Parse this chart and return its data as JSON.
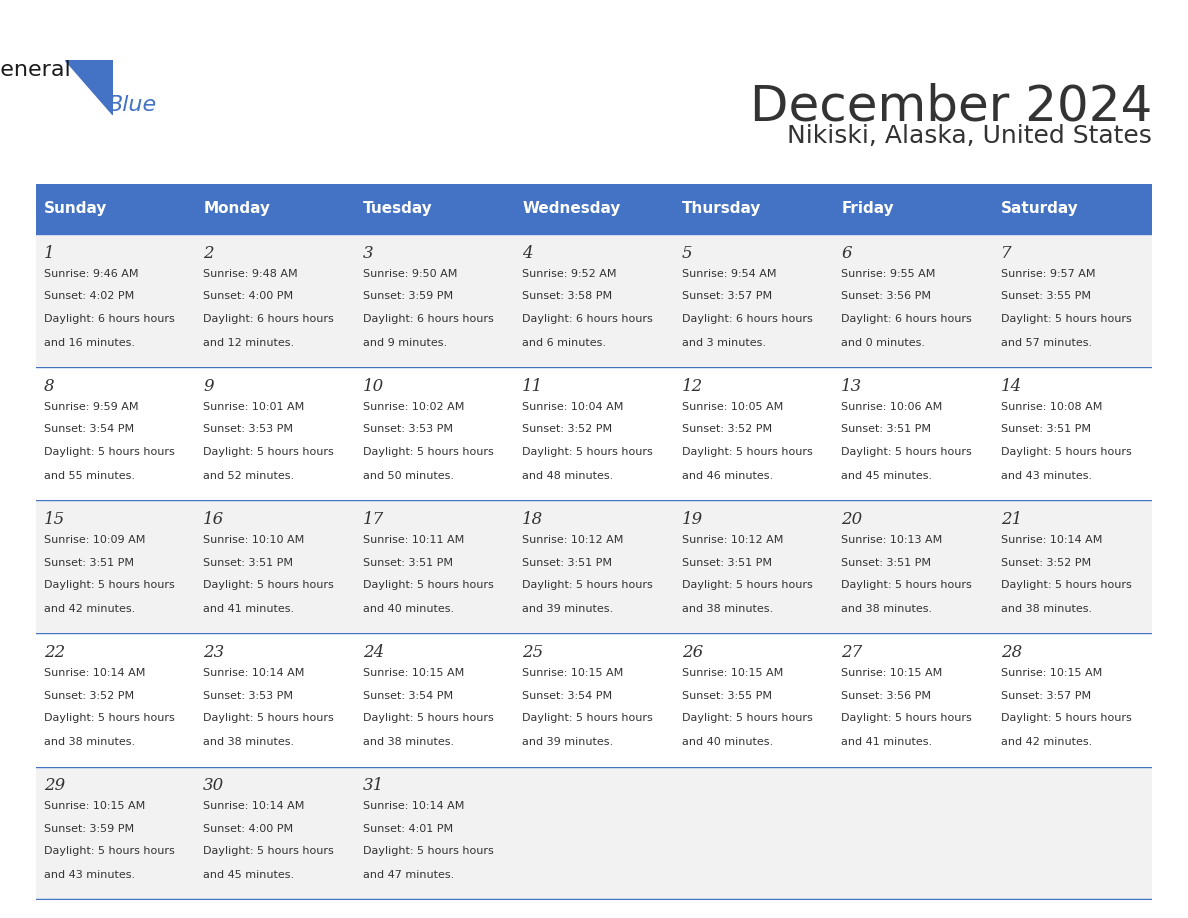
{
  "title": "December 2024",
  "subtitle": "Nikiski, Alaska, United States",
  "header_bg_color": "#4472C4",
  "header_text_color": "#FFFFFF",
  "header_font_size": 11,
  "days_of_week": [
    "Sunday",
    "Monday",
    "Tuesday",
    "Wednesday",
    "Thursday",
    "Friday",
    "Saturday"
  ],
  "cell_bg_even": "#F2F2F2",
  "cell_bg_odd": "#FFFFFF",
  "title_font_size": 36,
  "subtitle_font_size": 18,
  "day_num_font_size": 12,
  "cell_text_font_size": 8.0,
  "calendar": [
    [
      {
        "day": 1,
        "sunrise": "9:46 AM",
        "sunset": "4:02 PM",
        "daylight": "6 hours and 16 minutes"
      },
      {
        "day": 2,
        "sunrise": "9:48 AM",
        "sunset": "4:00 PM",
        "daylight": "6 hours and 12 minutes"
      },
      {
        "day": 3,
        "sunrise": "9:50 AM",
        "sunset": "3:59 PM",
        "daylight": "6 hours and 9 minutes"
      },
      {
        "day": 4,
        "sunrise": "9:52 AM",
        "sunset": "3:58 PM",
        "daylight": "6 hours and 6 minutes"
      },
      {
        "day": 5,
        "sunrise": "9:54 AM",
        "sunset": "3:57 PM",
        "daylight": "6 hours and 3 minutes"
      },
      {
        "day": 6,
        "sunrise": "9:55 AM",
        "sunset": "3:56 PM",
        "daylight": "6 hours and 0 minutes"
      },
      {
        "day": 7,
        "sunrise": "9:57 AM",
        "sunset": "3:55 PM",
        "daylight": "5 hours and 57 minutes"
      }
    ],
    [
      {
        "day": 8,
        "sunrise": "9:59 AM",
        "sunset": "3:54 PM",
        "daylight": "5 hours and 55 minutes"
      },
      {
        "day": 9,
        "sunrise": "10:01 AM",
        "sunset": "3:53 PM",
        "daylight": "5 hours and 52 minutes"
      },
      {
        "day": 10,
        "sunrise": "10:02 AM",
        "sunset": "3:53 PM",
        "daylight": "5 hours and 50 minutes"
      },
      {
        "day": 11,
        "sunrise": "10:04 AM",
        "sunset": "3:52 PM",
        "daylight": "5 hours and 48 minutes"
      },
      {
        "day": 12,
        "sunrise": "10:05 AM",
        "sunset": "3:52 PM",
        "daylight": "5 hours and 46 minutes"
      },
      {
        "day": 13,
        "sunrise": "10:06 AM",
        "sunset": "3:51 PM",
        "daylight": "5 hours and 45 minutes"
      },
      {
        "day": 14,
        "sunrise": "10:08 AM",
        "sunset": "3:51 PM",
        "daylight": "5 hours and 43 minutes"
      }
    ],
    [
      {
        "day": 15,
        "sunrise": "10:09 AM",
        "sunset": "3:51 PM",
        "daylight": "5 hours and 42 minutes"
      },
      {
        "day": 16,
        "sunrise": "10:10 AM",
        "sunset": "3:51 PM",
        "daylight": "5 hours and 41 minutes"
      },
      {
        "day": 17,
        "sunrise": "10:11 AM",
        "sunset": "3:51 PM",
        "daylight": "5 hours and 40 minutes"
      },
      {
        "day": 18,
        "sunrise": "10:12 AM",
        "sunset": "3:51 PM",
        "daylight": "5 hours and 39 minutes"
      },
      {
        "day": 19,
        "sunrise": "10:12 AM",
        "sunset": "3:51 PM",
        "daylight": "5 hours and 38 minutes"
      },
      {
        "day": 20,
        "sunrise": "10:13 AM",
        "sunset": "3:51 PM",
        "daylight": "5 hours and 38 minutes"
      },
      {
        "day": 21,
        "sunrise": "10:14 AM",
        "sunset": "3:52 PM",
        "daylight": "5 hours and 38 minutes"
      }
    ],
    [
      {
        "day": 22,
        "sunrise": "10:14 AM",
        "sunset": "3:52 PM",
        "daylight": "5 hours and 38 minutes"
      },
      {
        "day": 23,
        "sunrise": "10:14 AM",
        "sunset": "3:53 PM",
        "daylight": "5 hours and 38 minutes"
      },
      {
        "day": 24,
        "sunrise": "10:15 AM",
        "sunset": "3:54 PM",
        "daylight": "5 hours and 38 minutes"
      },
      {
        "day": 25,
        "sunrise": "10:15 AM",
        "sunset": "3:54 PM",
        "daylight": "5 hours and 39 minutes"
      },
      {
        "day": 26,
        "sunrise": "10:15 AM",
        "sunset": "3:55 PM",
        "daylight": "5 hours and 40 minutes"
      },
      {
        "day": 27,
        "sunrise": "10:15 AM",
        "sunset": "3:56 PM",
        "daylight": "5 hours and 41 minutes"
      },
      {
        "day": 28,
        "sunrise": "10:15 AM",
        "sunset": "3:57 PM",
        "daylight": "5 hours and 42 minutes"
      }
    ],
    [
      {
        "day": 29,
        "sunrise": "10:15 AM",
        "sunset": "3:59 PM",
        "daylight": "5 hours and 43 minutes"
      },
      {
        "day": 30,
        "sunrise": "10:14 AM",
        "sunset": "4:00 PM",
        "daylight": "5 hours and 45 minutes"
      },
      {
        "day": 31,
        "sunrise": "10:14 AM",
        "sunset": "4:01 PM",
        "daylight": "5 hours and 47 minutes"
      },
      null,
      null,
      null,
      null
    ]
  ],
  "logo_text_general": "General",
  "logo_text_blue": "Blue",
  "bg_color": "#FFFFFF",
  "grid_line_color": "#4472C4",
  "text_color": "#333333"
}
